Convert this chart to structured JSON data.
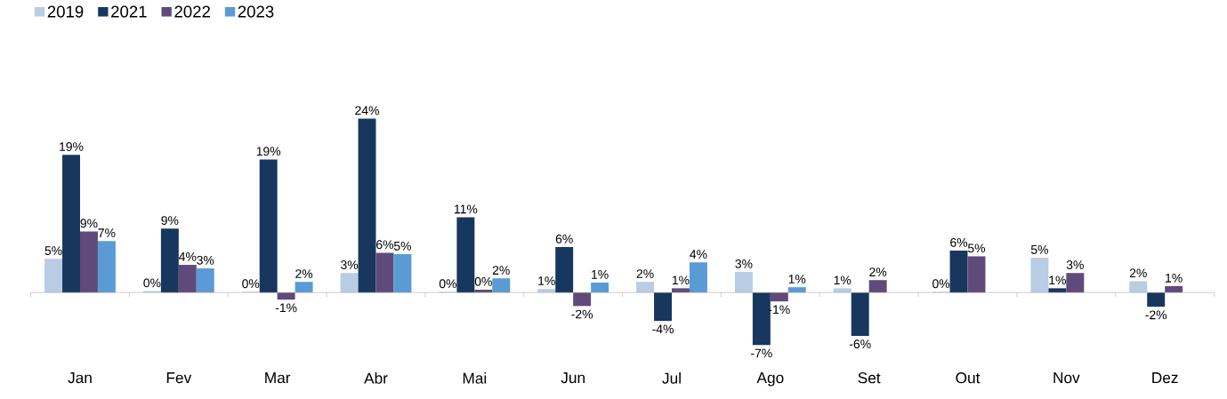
{
  "chart_data": {
    "type": "bar",
    "categories": [
      "Jan",
      "Fev",
      "Mar",
      "Abr",
      "Mai",
      "Jun",
      "Jul",
      "Ago",
      "Set",
      "Out",
      "Nov",
      "Dez"
    ],
    "series": [
      {
        "name": "2019",
        "color": "#b8cce4",
        "values": [
          4.75,
          0.2,
          0.1,
          2.75,
          0.1,
          0.5,
          1.5,
          2.9,
          0.6,
          0.1,
          4.9,
          1.6
        ],
        "value_labels": [
          "5%",
          "0%",
          "0%",
          "3%",
          "0%",
          "1%",
          "2%",
          "3%",
          "1%",
          "0%",
          "5%",
          "2%"
        ]
      },
      {
        "name": "2021",
        "color": "#17375e",
        "values": [
          19.4,
          9.0,
          18.75,
          24.5,
          10.6,
          6.4,
          -4.0,
          -7.4,
          -6.1,
          5.9,
          0.6,
          -2.0
        ],
        "value_labels": [
          "19%",
          "9%",
          "19%",
          "24%",
          "11%",
          "6%",
          "-4%",
          "-7%",
          "-6%",
          "6%",
          "1%",
          "-2%"
        ]
      },
      {
        "name": "2022",
        "color": "#604a7b",
        "values": [
          8.6,
          3.9,
          -1.0,
          5.6,
          0.4,
          -1.9,
          0.6,
          -1.25,
          1.75,
          5.1,
          2.75,
          0.9
        ],
        "value_labels": [
          "9%",
          "4%",
          "-1%",
          "6%",
          "0%",
          "-2%",
          "1%",
          "-1%",
          "2%",
          "5%",
          "3%",
          "1%"
        ]
      },
      {
        "name": "2023",
        "color": "#5b9bd5",
        "values": [
          7.25,
          3.4,
          1.5,
          5.4,
          2.0,
          1.4,
          4.25,
          0.75,
          null,
          null,
          null,
          null
        ],
        "value_labels": [
          "7%",
          "3%",
          "2%",
          "5%",
          "2%",
          "1%",
          "4%",
          "1%",
          null,
          null,
          null,
          null
        ]
      }
    ],
    "legend": "top left"
  }
}
